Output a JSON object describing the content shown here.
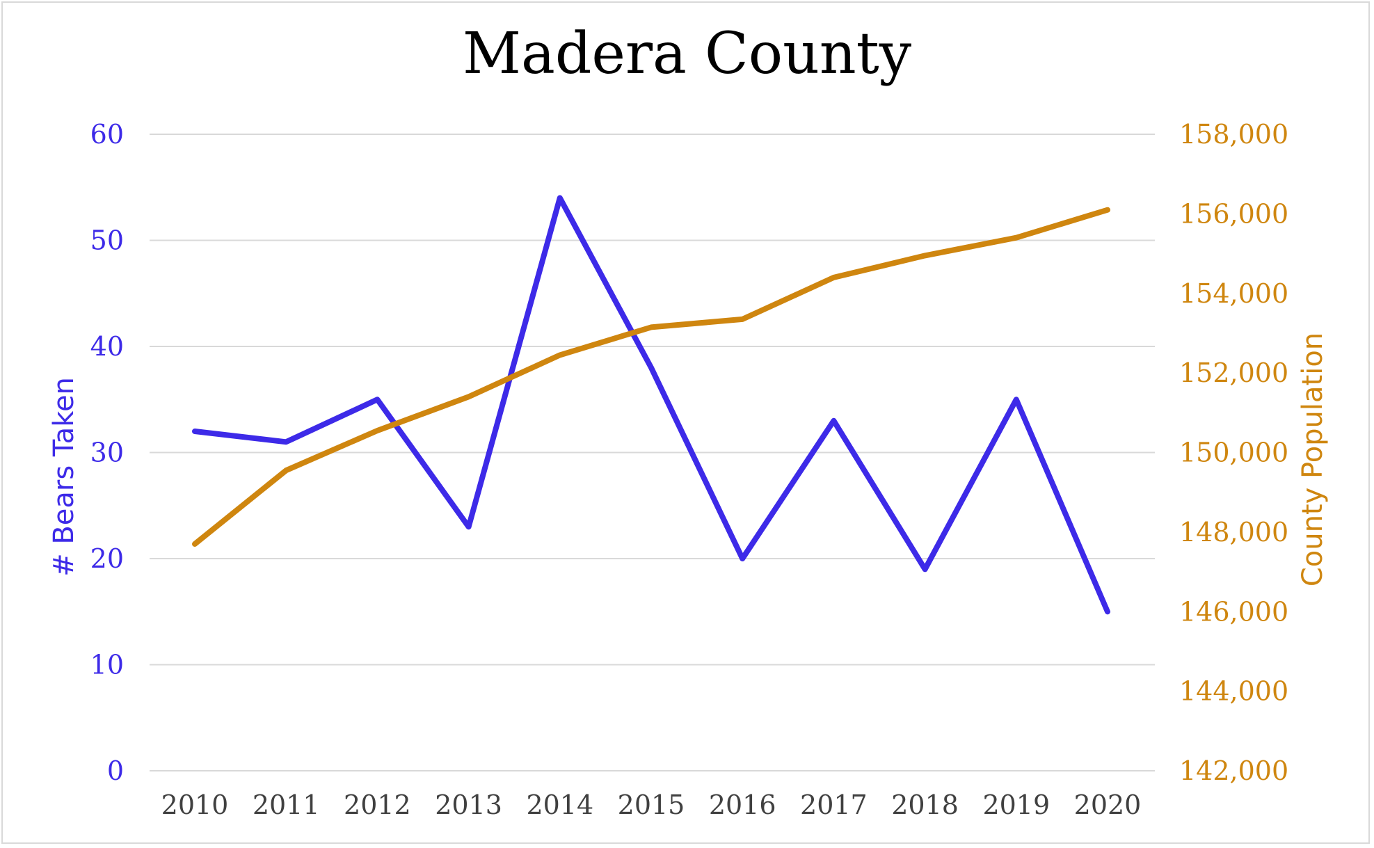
{
  "title": "Madera County",
  "colors": {
    "bears": "#3d2ae8",
    "population": "#cf860f",
    "grid": "#d9d9d9",
    "xtick": "#404040"
  },
  "chart_data": {
    "type": "line",
    "title": "Madera County",
    "x": [
      "2010",
      "2011",
      "2012",
      "2013",
      "2014",
      "2015",
      "2016",
      "2017",
      "2018",
      "2019",
      "2020"
    ],
    "xlabel": "",
    "grid": true,
    "legend": "none",
    "y_left": {
      "label": "# Bears Taken",
      "lim": [
        0,
        60
      ],
      "ticks": [
        "0",
        "10",
        "20",
        "30",
        "40",
        "50",
        "60"
      ],
      "tick_values": [
        0,
        10,
        20,
        30,
        40,
        50,
        60
      ]
    },
    "y_right": {
      "label": "County Population",
      "lim": [
        142000,
        158000
      ],
      "ticks": [
        "142,000",
        "144,000",
        "146,000",
        "148,000",
        "150,000",
        "152,000",
        "154,000",
        "156,000",
        "158,000"
      ],
      "tick_values": [
        142000,
        144000,
        146000,
        148000,
        150000,
        152000,
        154000,
        156000,
        158000
      ]
    },
    "series": [
      {
        "axis": "left",
        "color": "#3d2ae8",
        "values": [
          32,
          31,
          35,
          23,
          54,
          38,
          20,
          33,
          19,
          35,
          15
        ]
      },
      {
        "axis": "right",
        "color": "#cf860f",
        "values": [
          147700,
          149550,
          150550,
          151400,
          152450,
          153150,
          153350,
          154400,
          154950,
          155400,
          156100
        ]
      }
    ]
  }
}
